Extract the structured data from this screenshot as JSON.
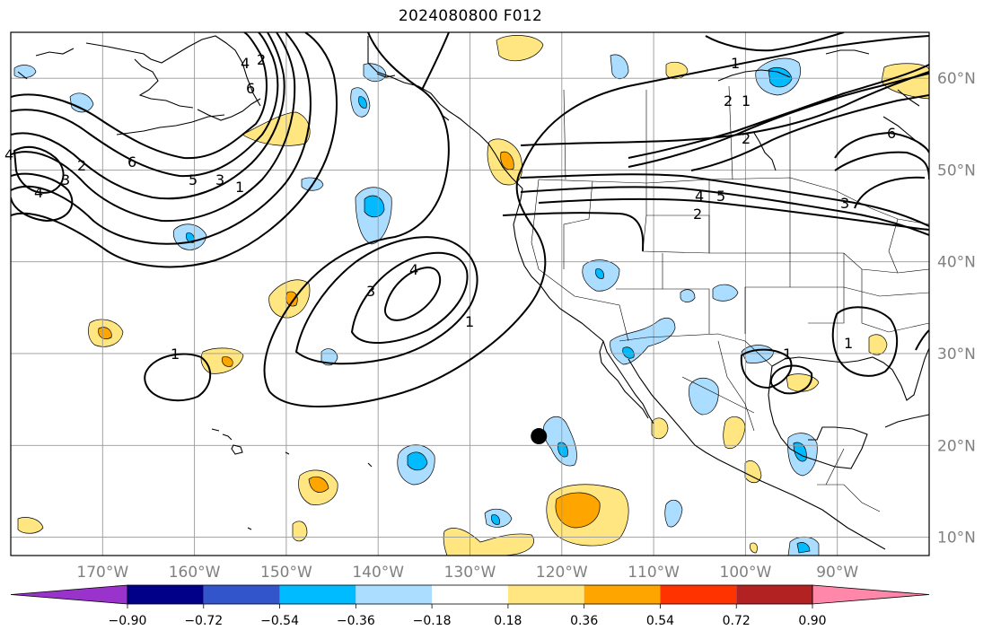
{
  "title": "2024080800 F012",
  "map": {
    "projection": "equirectangular",
    "lon_range": [
      -180,
      -80
    ],
    "lat_range": [
      8,
      65
    ],
    "gridlines": true,
    "lon_ticks": [
      {
        "value": -170,
        "label": "170°W"
      },
      {
        "value": -160,
        "label": "160°W"
      },
      {
        "value": -150,
        "label": "150°W"
      },
      {
        "value": -140,
        "label": "140°W"
      },
      {
        "value": -130,
        "label": "130°W"
      },
      {
        "value": -120,
        "label": "120°W"
      },
      {
        "value": -110,
        "label": "110°W"
      },
      {
        "value": -100,
        "label": "100°W"
      },
      {
        "value": -90,
        "label": "90°W"
      }
    ],
    "lat_ticks": [
      {
        "value": 60,
        "label": "60°N"
      },
      {
        "value": 50,
        "label": "50°N"
      },
      {
        "value": 40,
        "label": "40°N"
      },
      {
        "value": 30,
        "label": "30°N"
      },
      {
        "value": 20,
        "label": "20°N"
      },
      {
        "value": 10,
        "label": "10°N"
      }
    ],
    "marker": {
      "name": "black-dot",
      "lon": -122.5,
      "lat": 21
    }
  },
  "colorbar": {
    "levels": [
      "−0.90",
      "−0.72",
      "−0.54",
      "−0.36",
      "−0.18",
      "0.18",
      "0.36",
      "0.54",
      "0.72",
      "0.90"
    ],
    "colors": [
      "#9933cc",
      "#000088",
      "#3355cc",
      "#00bbff",
      "#aaddff",
      "#ffffff",
      "#ffe680",
      "#ffa500",
      "#ff3300",
      "#b22222",
      "#ff88aa"
    ],
    "extend": "both"
  },
  "contour_labels": [
    "1",
    "2",
    "3",
    "4",
    "5",
    "6"
  ],
  "colors": {
    "light_blue": "#aaddff",
    "blue": "#00bbff",
    "light_yellow": "#ffe680",
    "orange": "#ffa500",
    "grid": "#999999",
    "tick_text": "#808080"
  }
}
